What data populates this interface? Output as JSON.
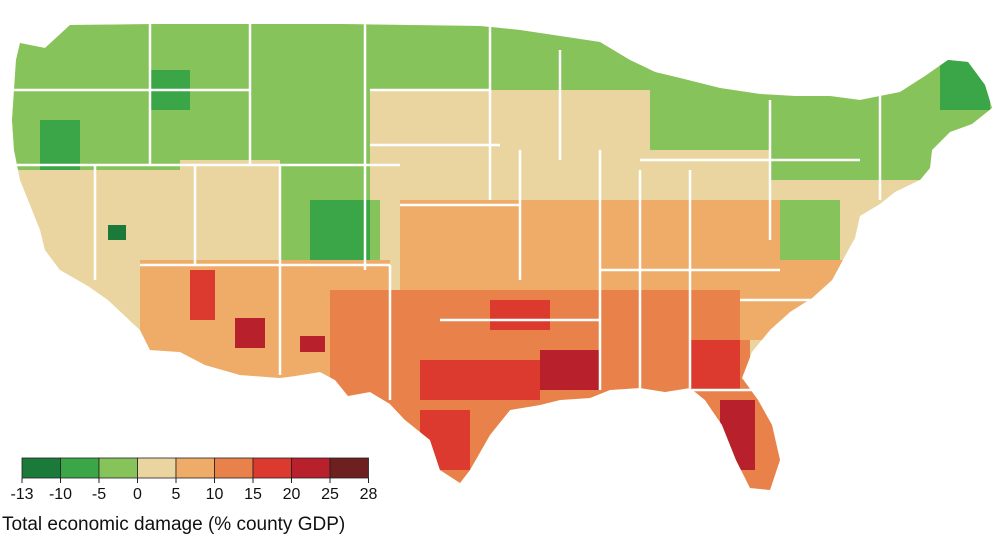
{
  "legend": {
    "title": "Total economic damage (% county GDP)",
    "ticks": [
      "-13",
      "-10",
      "-5",
      "0",
      "5",
      "10",
      "15",
      "20",
      "25",
      "28"
    ],
    "bins": [
      {
        "range": "-13 to -10",
        "color": "#1b7a3a"
      },
      {
        "range": "-10 to -5",
        "color": "#3aa648"
      },
      {
        "range": "-5 to 0",
        "color": "#86c35a"
      },
      {
        "range": "0 to 5",
        "color": "#ead5a0"
      },
      {
        "range": "5 to 10",
        "color": "#efab68"
      },
      {
        "range": "10 to 15",
        "color": "#e8824a"
      },
      {
        "range": "15 to 20",
        "color": "#dc3a2e"
      },
      {
        "range": "20 to 25",
        "color": "#b8202c"
      },
      {
        "range": "25 to 28",
        "color": "#6e1f1f"
      }
    ]
  },
  "map": {
    "subject": "contiguous United States",
    "unit": "county",
    "border_color": "#ffffff"
  }
}
